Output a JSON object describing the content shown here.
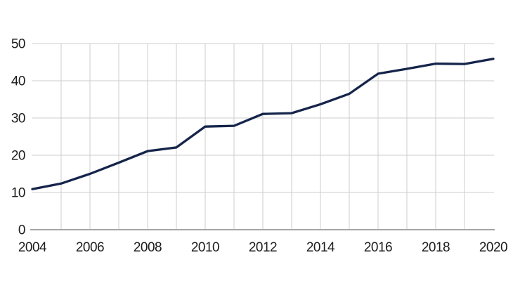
{
  "chart_data": {
    "type": "line",
    "title": "",
    "xlabel": "",
    "ylabel": "",
    "x": [
      2004,
      2005,
      2006,
      2007,
      2008,
      2009,
      2010,
      2011,
      2012,
      2013,
      2014,
      2015,
      2016,
      2017,
      2018,
      2019,
      2020
    ],
    "values": [
      10.9,
      12.4,
      15.0,
      18.0,
      21.1,
      22.1,
      27.7,
      27.9,
      31.1,
      31.3,
      33.7,
      36.5,
      41.9,
      43.2,
      44.6,
      44.5,
      45.9
    ],
    "ylim": [
      0,
      50
    ],
    "y_ticks": [
      0,
      10,
      20,
      30,
      40,
      50
    ],
    "x_tick_labels": [
      "2004",
      "2006",
      "2008",
      "2010",
      "2012",
      "2014",
      "2016",
      "2018",
      "2020"
    ],
    "grid": true,
    "legend_position": "none"
  },
  "colors": {
    "line": "#15244a",
    "grid": "#cdcdcd",
    "axis": "#a6a6a6",
    "label": "#1c1c1c",
    "background": "#ffffff"
  }
}
